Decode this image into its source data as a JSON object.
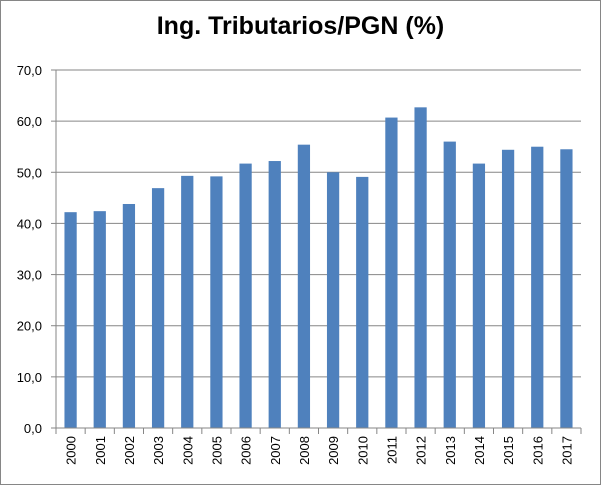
{
  "chart_data": {
    "type": "bar",
    "title": "Ing. Tributarios/PGN (%)",
    "xlabel": "",
    "ylabel": "",
    "categories": [
      "2000",
      "2001",
      "2002",
      "2003",
      "2004",
      "2005",
      "2006",
      "2007",
      "2008",
      "2009",
      "2010",
      "2011",
      "2012",
      "2013",
      "2014",
      "2015",
      "2016",
      "2017"
    ],
    "values": [
      42.2,
      42.4,
      43.8,
      46.9,
      49.3,
      49.2,
      51.7,
      52.2,
      55.4,
      50.0,
      49.1,
      60.7,
      62.7,
      56.0,
      51.7,
      54.4,
      55.0,
      54.5
    ],
    "ylim": [
      0,
      70
    ],
    "yticks": [
      "0,0",
      "10,0",
      "20,0",
      "30,0",
      "40,0",
      "50,0",
      "60,0",
      "70,0"
    ],
    "grid": true,
    "legend": "none",
    "colors": {
      "bar": "#4F81BD",
      "grid": "#868686",
      "axis": "#868686"
    }
  }
}
